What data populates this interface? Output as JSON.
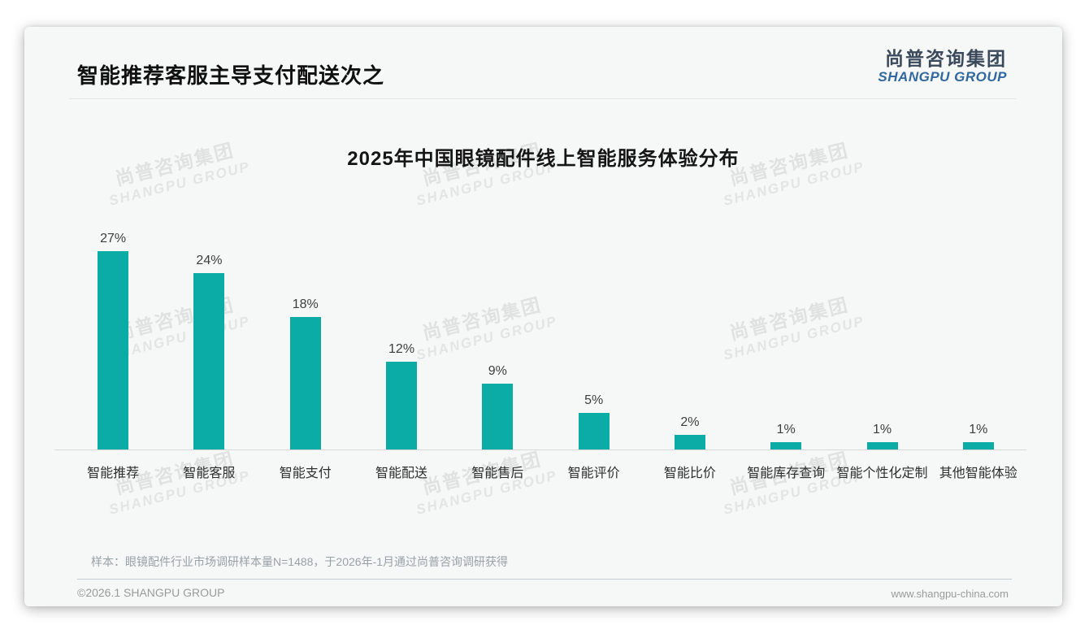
{
  "page": {
    "header": {
      "title": "智能推荐客服主导支付配送次之",
      "logo_cn": "尚普咨询集团",
      "logo_en": "SHANGPU GROUP"
    },
    "watermark": {
      "line1": "尚普咨询集团",
      "line2": "SHANGPU GROUP"
    },
    "footnote": "样本：眼镜配件行业市场调研样本量N=1488，于2026年-1月通过尚普咨询调研获得",
    "footer": {
      "left": "©2026.1 SHANGPU GROUP",
      "right": "www.shangpu-china.com"
    }
  },
  "chart_data": {
    "type": "bar",
    "title": "2025年中国眼镜配件线上智能服务体验分布",
    "categories": [
      "智能推荐",
      "智能客服",
      "智能支付",
      "智能配送",
      "智能售后",
      "智能评价",
      "智能比价",
      "智能库存查询",
      "智能个性化定制",
      "其他智能体验"
    ],
    "values": [
      27,
      24,
      18,
      12,
      9,
      5,
      2,
      1,
      1,
      1
    ],
    "value_suffix": "%",
    "xlabel": "",
    "ylabel": "",
    "ylim": [
      0,
      30
    ],
    "grid": false,
    "legend": false,
    "bar_color": "#0baca5",
    "label_color": "#3d3d3d"
  }
}
